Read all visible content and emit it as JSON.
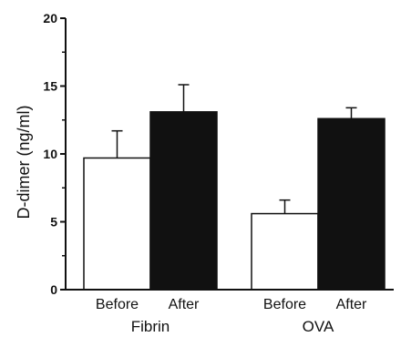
{
  "chart_data": {
    "type": "bar",
    "title": "",
    "xlabel": "",
    "ylabel": "D-dimer (ng/ml)",
    "ylim": [
      0,
      20
    ],
    "yticks": [
      "0",
      "5",
      "10",
      "15",
      "20"
    ],
    "groups": [
      "Fibrin",
      "OVA"
    ],
    "categories": [
      "Before",
      "After",
      "Before",
      "After"
    ],
    "values": [
      9.7,
      13.1,
      5.6,
      12.6
    ],
    "errors": [
      2.0,
      2.0,
      1.0,
      0.8
    ],
    "bar_colors": [
      "#ffffff",
      "#111111",
      "#ffffff",
      "#111111"
    ],
    "grid": false,
    "legend": "none"
  }
}
